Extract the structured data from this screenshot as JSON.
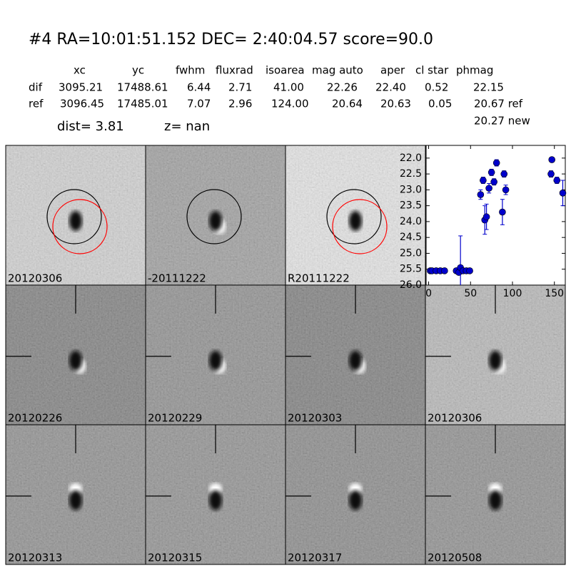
{
  "header": {
    "title": "#4   RA=10:01:51.152 DEC= 2:40:04.57      score=90.0"
  },
  "table": {
    "columns": [
      "xc",
      "yc",
      "fwhm",
      "fluxrad",
      "isoarea",
      "mag auto",
      "aper",
      "cl star",
      "phmag"
    ],
    "rows": [
      {
        "name": "dif",
        "cells": [
          "3095.21",
          "17488.61",
          "6.44",
          "2.71",
          "41.00",
          "22.26",
          "22.40",
          "0.52",
          "22.15"
        ]
      },
      {
        "name": "ref",
        "cells": [
          "3096.45",
          "17485.01",
          "7.07",
          "2.96",
          "124.00",
          "20.64",
          "20.63",
          "0.05",
          "20.67 ref"
        ]
      }
    ],
    "extra": "20.27 new"
  },
  "dist": "dist=  3.81",
  "z": "z=   nan",
  "top_panels": [
    {
      "label": "20120306"
    },
    {
      "label": "-20111222"
    },
    {
      "label": "R20111222"
    }
  ],
  "cutouts": [
    {
      "label": "20120226"
    },
    {
      "label": "20120229"
    },
    {
      "label": "20120303"
    },
    {
      "label": "20120306",
      "label_color": "#ff0000"
    },
    {
      "label": "20120313"
    },
    {
      "label": "20120315"
    },
    {
      "label": "20120317"
    },
    {
      "label": "20120508"
    }
  ],
  "chart_data": {
    "type": "errorbar",
    "color": "#0000cc",
    "x": [
      2,
      4,
      9,
      14,
      19,
      33,
      36,
      38,
      41,
      45,
      49,
      62,
      65,
      67,
      69,
      72,
      75,
      78,
      81,
      88,
      90,
      92,
      146,
      147,
      153,
      160
    ],
    "values": [
      25.55,
      25.55,
      25.55,
      25.55,
      25.55,
      25.55,
      25.6,
      25.45,
      25.55,
      25.55,
      25.55,
      23.15,
      22.7,
      23.95,
      23.85,
      22.95,
      22.45,
      22.75,
      22.15,
      23.7,
      22.5,
      23.0,
      22.5,
      22.05,
      22.7,
      23.1
    ],
    "errors": [
      0.05,
      0.05,
      0.05,
      0.05,
      0.05,
      0.05,
      0.05,
      1.0,
      0.05,
      0.05,
      0.05,
      0.15,
      0.1,
      0.45,
      0.4,
      0.15,
      0.1,
      0.1,
      0.1,
      0.4,
      0.1,
      0.15,
      0.1,
      0.05,
      0.1,
      0.4
    ],
    "xlim": [
      -3,
      163
    ],
    "xticks": [
      0,
      50,
      100,
      150
    ],
    "ylim": [
      21.6,
      26.0
    ],
    "y_inverted": true,
    "yticks": [
      {
        "value": 22,
        "label": "22.0"
      },
      22.5,
      {
        "value": 23,
        "label": "23.0"
      },
      23.5,
      {
        "value": 24,
        "label": "24.0"
      },
      24.5,
      {
        "value": 25,
        "label": "25.0"
      },
      25.5,
      {
        "value": 26,
        "label": "26.0"
      }
    ]
  }
}
